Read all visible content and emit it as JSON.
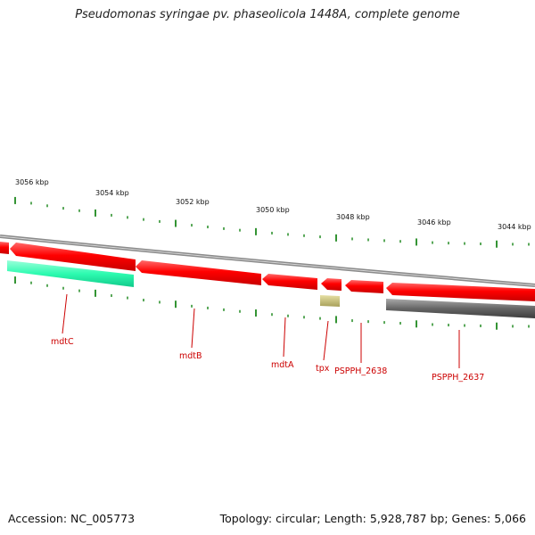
{
  "header": {
    "title": "Pseudomonas syringae pv. phaseolicola 1448A, complete genome"
  },
  "footer": {
    "accession": "Accession: NC_005773",
    "summary": "Topology: circular; Length: 5,928,787 bp; Genes: 5,066"
  },
  "colors": {
    "forward_gene": "#ff0000",
    "reverse_gene": "#ff0000",
    "rna_gene": "#2dfbb0",
    "grey_feature": "#666666",
    "khaki_feature": "#bdb76b",
    "backbone": "#888888",
    "tick": "#007a00",
    "gene_label": "#cc0000"
  },
  "scale": {
    "labels": [
      "3056 kbp",
      "3054 kbp",
      "3052 kbp",
      "3050 kbp",
      "3048 kbp",
      "3046 kbp",
      "3044 kbp"
    ]
  },
  "genes": [
    {
      "label": "mdtC"
    },
    {
      "label": "mdtB"
    },
    {
      "label": "mdtA"
    },
    {
      "label": "tpx"
    },
    {
      "label": "PSPPH_2638"
    },
    {
      "label": "PSPPH_2637"
    }
  ]
}
